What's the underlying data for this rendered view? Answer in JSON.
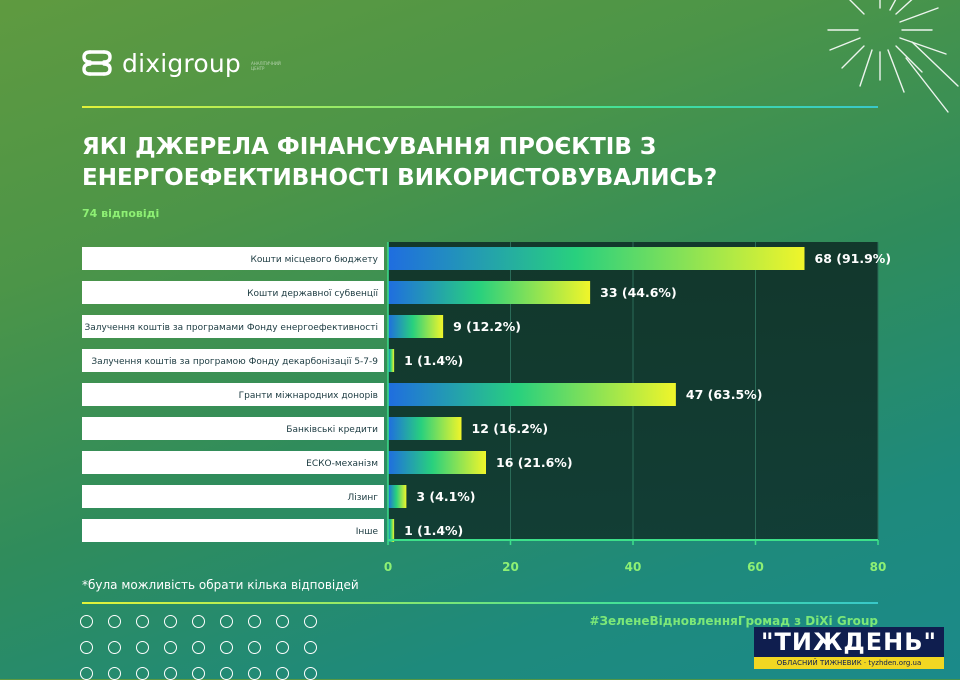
{
  "brand": {
    "logo_text": "dixigroup",
    "logo_tagline": "АНАЛІТИЧНИЙ ЦЕНТР"
  },
  "colors": {
    "bar_start": "#1f6de0",
    "bar_mid": "#28d07e",
    "bar_end": "#f0f52a",
    "panel": "#123c2e",
    "accent": "#7ce878"
  },
  "chart_data": {
    "type": "bar",
    "orientation": "horizontal",
    "title": "ЯКІ ДЖЕРЕЛА ФІНАНСУВАННЯ ПРОЄКТІВ З ЕНЕРГОЕФЕКТИВНОСТІ ВИКОРИСТОВУВАЛИСЬ?",
    "subtitle": "74 відповіді",
    "categories": [
      "Кошти місцевого бюджету",
      "Кошти державної субвенції",
      "Залучення коштів за програмами Фонду енергоефективності",
      "Залучення коштів за програмою Фонду декарбонізації 5-7-9",
      "Гранти міжнародних донорів",
      "Банківські кредити",
      "ЕСКО-механізм",
      "Лізинг",
      "Інше"
    ],
    "values": [
      68,
      33,
      9,
      1,
      47,
      12,
      16,
      3,
      1
    ],
    "data_labels": [
      "68 (91.9%)",
      "33 (44.6%)",
      "9 (12.2%)",
      "1 (1.4%)",
      "47 (63.5%)",
      "12 (16.2%)",
      "16 (21.6%)",
      "3 (4.1%)",
      "1 (1.4%)"
    ],
    "xlim": [
      0,
      80
    ],
    "xticks": [
      0,
      20,
      40,
      60,
      80
    ],
    "grid": true,
    "footnote": "*була можливість обрати кілька відповідей"
  },
  "footer": {
    "hashtag": "#ЗеленеВідновленняГромад з DiXi Group",
    "badge_title": "\"ТИЖДЕНЬ\"",
    "badge_subtitle": "ОБЛАСНИЙ ТИЖНЕВИК · tyzhden.org.ua"
  }
}
